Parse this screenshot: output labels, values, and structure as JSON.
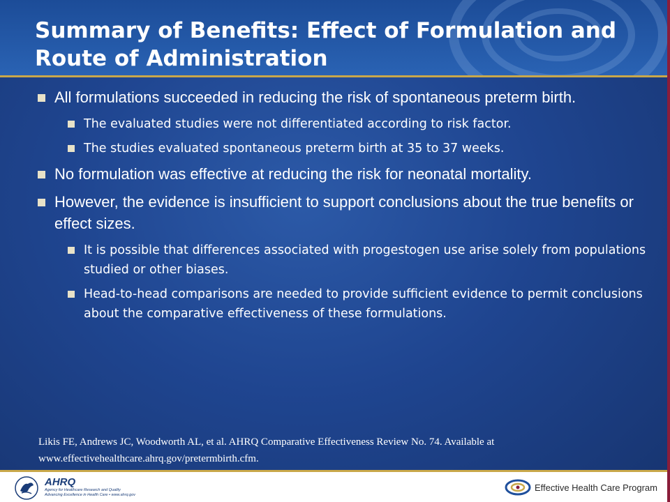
{
  "slide": {
    "title": "Summary of Benefits: Effect of Formulation and Route of Administration",
    "bullets": [
      {
        "text": "All formulations succeeded in reducing the risk of spontaneous preterm birth.",
        "sub": [
          "The evaluated studies were not differentiated according to risk factor.",
          "The studies evaluated spontaneous preterm birth at 35 to 37 weeks."
        ]
      },
      {
        "text": "No formulation was effective at reducing the risk for neonatal mortality.",
        "sub": []
      },
      {
        "text": "However, the evidence is insufficient to support conclusions about the true benefits or effect sizes.",
        "sub": [
          "It is possible that differences associated with progestogen use arise solely from populations studied or other biases.",
          "Head-to-head comparisons are needed to provide sufficient evidence to permit conclusions about the comparative effectiveness of these formulations."
        ]
      }
    ],
    "citation": {
      "line1": "Likis FE, Andrews JC, Woodworth AL, et al. AHRQ Comparative Effectiveness Review No. 74. Available at",
      "line2": "www.effectivehealthcare.ahrq.gov/pretermbirth.cfm."
    }
  },
  "footer": {
    "ahrq_name": "AHRQ",
    "ahrq_line1": "Agency for Healthcare Research and Quality",
    "ahrq_line2": "Advancing Excellence in Health Care • www.ahrq.gov",
    "program_name": "Effective Health Care Program",
    "icons": [
      "hhs-eagle-logo",
      "ehc-swirl-logo"
    ]
  },
  "colors": {
    "background": "#1f4590",
    "header": "#2a63b4",
    "accent_rule": "#c9a84a",
    "bullet": "#e8e2c8",
    "text": "#ffffff"
  }
}
